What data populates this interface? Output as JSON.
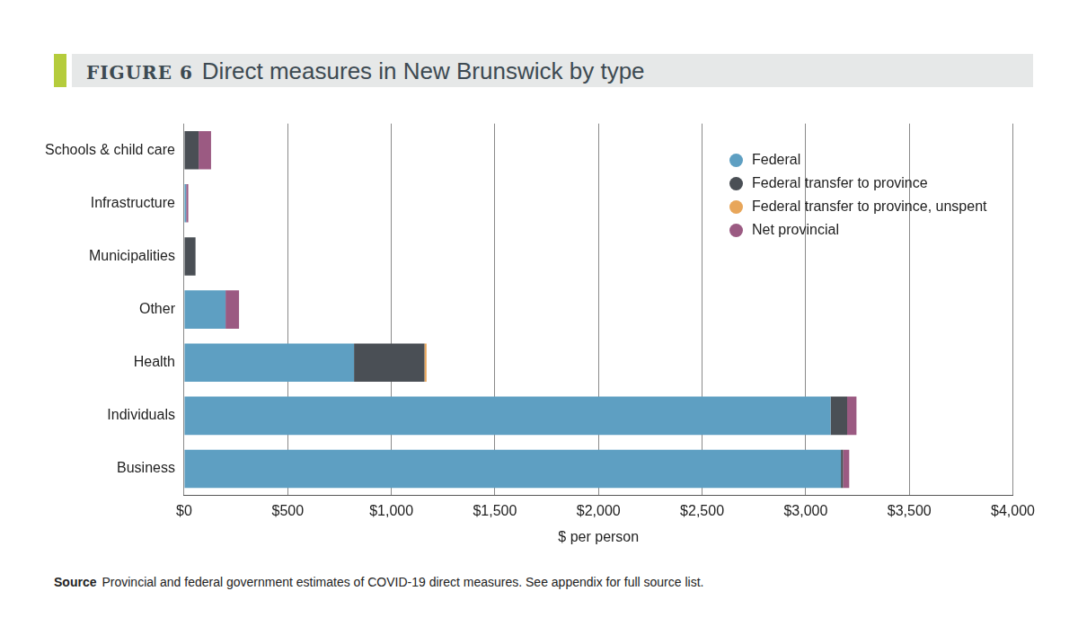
{
  "chart_data": {
    "type": "bar",
    "figure_label": "FIGURE 6",
    "title": "Direct measures in New Brunswick by type",
    "orientation": "horizontal",
    "stacked": true,
    "categories": [
      "Schools & child care",
      "Infrastructure",
      "Municipalities",
      "Other",
      "Health",
      "Individuals",
      "Business"
    ],
    "series": [
      {
        "name": "Federal",
        "color": "#5e9fc2",
        "values": [
          0,
          10,
          0,
          200,
          820,
          3120,
          3170
        ]
      },
      {
        "name": "Federal transfer to province",
        "color": "#4a4f55",
        "values": [
          70,
          0,
          55,
          0,
          340,
          80,
          10
        ]
      },
      {
        "name": "Federal transfer to province, unspent",
        "color": "#e8a65a",
        "values": [
          0,
          0,
          0,
          0,
          10,
          0,
          0
        ]
      },
      {
        "name": "Net provincial",
        "color": "#9b5a82",
        "values": [
          60,
          10,
          0,
          65,
          0,
          45,
          30
        ]
      }
    ],
    "xlabel": "$ per person",
    "xlim": [
      0,
      4000
    ],
    "xticks": [
      {
        "value": 0,
        "label": "$0"
      },
      {
        "value": 500,
        "label": "$500"
      },
      {
        "value": 1000,
        "label": "$1,000"
      },
      {
        "value": 1500,
        "label": "$1,500"
      },
      {
        "value": 2000,
        "label": "$2,000"
      },
      {
        "value": 2500,
        "label": "$2,500"
      },
      {
        "value": 3000,
        "label": "$3,000"
      },
      {
        "value": 3500,
        "label": "$3,500"
      },
      {
        "value": 4000,
        "label": "$4,000"
      }
    ],
    "grid": true,
    "legend": "upper right",
    "source_label": "Source",
    "source": "Provincial and federal government estimates of COVID-19 direct measures. See appendix for full source list."
  }
}
